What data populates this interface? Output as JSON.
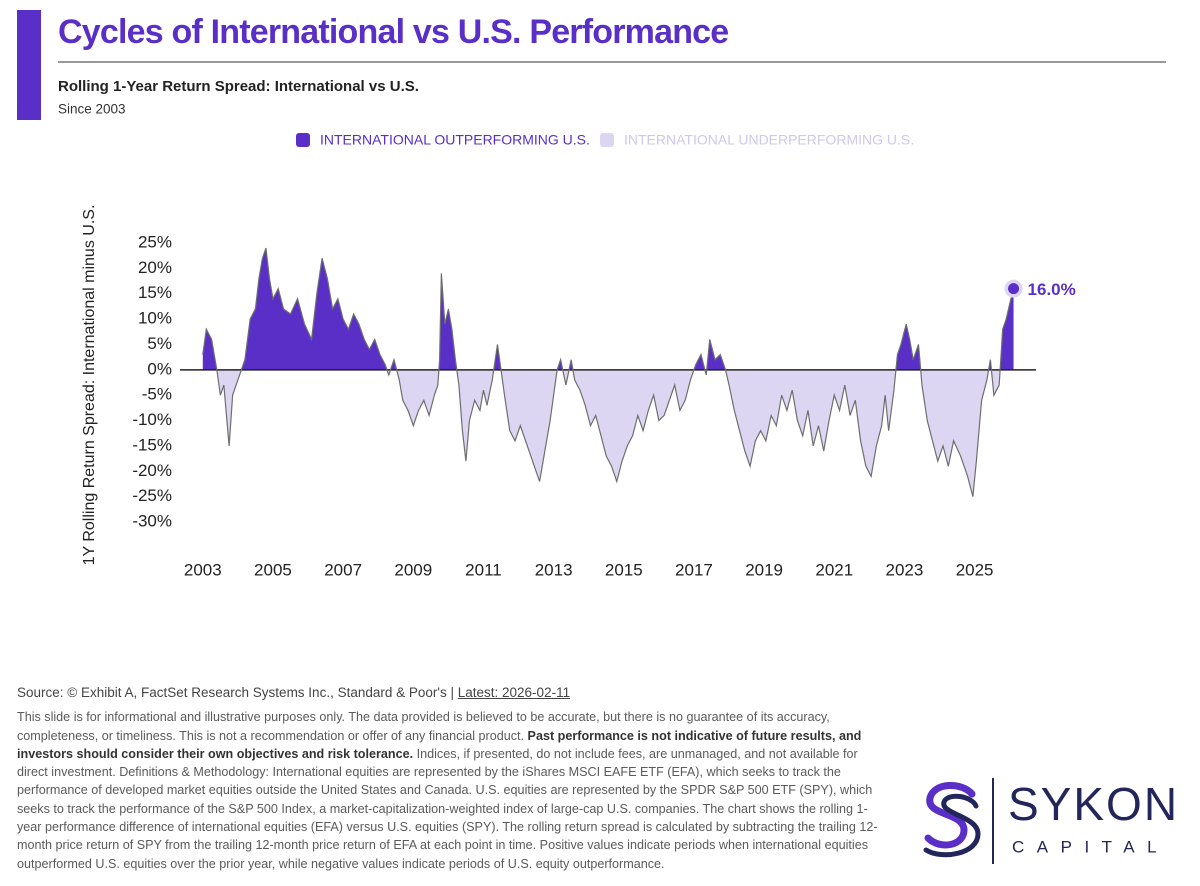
{
  "header": {
    "title": "Cycles of International vs U.S. Performance",
    "subtitle": "Rolling 1-Year Return Spread: International vs U.S.",
    "note": "Since 2003"
  },
  "chart_data": {
    "type": "area",
    "y_label": "1Y Rolling Return Spread: International minus U.S.",
    "legend": [
      {
        "label": "INTERNATIONAL OUTPERFORMING U.S.",
        "color": "#5a2fc8"
      },
      {
        "label": "INTERNATIONAL UNDERPERFORMING U.S.",
        "color": "#ddd6f3"
      }
    ],
    "line_color": "#6e6e6e",
    "x": [
      2003.0,
      2003.1,
      2003.25,
      2003.4,
      2003.5,
      2003.6,
      2003.75,
      2003.85,
      2004.0,
      2004.2,
      2004.35,
      2004.5,
      2004.6,
      2004.7,
      2004.8,
      2004.9,
      2005.0,
      2005.15,
      2005.3,
      2005.5,
      2005.7,
      2005.9,
      2006.1,
      2006.25,
      2006.4,
      2006.55,
      2006.7,
      2006.85,
      2007.0,
      2007.15,
      2007.3,
      2007.45,
      2007.6,
      2007.75,
      2007.9,
      2008.05,
      2008.2,
      2008.3,
      2008.45,
      2008.6,
      2008.7,
      2008.85,
      2009.0,
      2009.15,
      2009.3,
      2009.45,
      2009.6,
      2009.7,
      2009.75,
      2009.8,
      2009.9,
      2010.0,
      2010.1,
      2010.2,
      2010.3,
      2010.4,
      2010.5,
      2010.6,
      2010.75,
      2010.9,
      2011.0,
      2011.1,
      2011.25,
      2011.4,
      2011.5,
      2011.6,
      2011.75,
      2011.9,
      2012.05,
      2012.2,
      2012.35,
      2012.5,
      2012.6,
      2012.75,
      2012.9,
      2013.0,
      2013.1,
      2013.2,
      2013.35,
      2013.5,
      2013.6,
      2013.75,
      2013.9,
      2014.05,
      2014.2,
      2014.35,
      2014.5,
      2014.65,
      2014.8,
      2014.95,
      2015.1,
      2015.25,
      2015.4,
      2015.55,
      2015.7,
      2015.85,
      2016.0,
      2016.15,
      2016.3,
      2016.45,
      2016.6,
      2016.75,
      2016.9,
      2017.05,
      2017.2,
      2017.35,
      2017.45,
      2017.6,
      2017.75,
      2017.9,
      2018.0,
      2018.15,
      2018.3,
      2018.45,
      2018.6,
      2018.75,
      2018.9,
      2019.05,
      2019.2,
      2019.35,
      2019.5,
      2019.65,
      2019.8,
      2019.95,
      2020.1,
      2020.25,
      2020.4,
      2020.55,
      2020.7,
      2020.85,
      2021.0,
      2021.15,
      2021.3,
      2021.45,
      2021.6,
      2021.75,
      2021.9,
      2022.05,
      2022.2,
      2022.35,
      2022.45,
      2022.55,
      2022.7,
      2022.8,
      2022.9,
      2023.05,
      2023.15,
      2023.25,
      2023.4,
      2023.5,
      2023.65,
      2023.8,
      2023.95,
      2024.1,
      2024.25,
      2024.4,
      2024.6,
      2024.8,
      2024.95,
      2025.05,
      2025.2,
      2025.35,
      2025.45,
      2025.55,
      2025.7,
      2025.8,
      2025.9,
      2026.0,
      2026.11
    ],
    "values": [
      3,
      8,
      6,
      0,
      -5,
      -3,
      -15,
      -5,
      -2,
      2,
      10,
      12,
      18,
      22,
      24,
      18,
      14,
      16,
      12,
      11,
      14,
      9,
      6,
      15,
      22,
      18,
      12,
      14,
      10,
      8,
      11,
      9,
      6,
      4,
      6,
      3,
      1,
      -1,
      2,
      -2,
      -6,
      -8,
      -11,
      -8,
      -6,
      -9,
      -5,
      -3,
      2,
      19,
      9,
      12,
      8,
      2,
      -3,
      -12,
      -18,
      -10,
      -6,
      -8,
      -4,
      -7,
      -2,
      5,
      0,
      -5,
      -12,
      -14,
      -11,
      -14,
      -17,
      -20,
      -22,
      -16,
      -10,
      -5,
      0,
      2,
      -3,
      2,
      -2,
      -4,
      -7,
      -11,
      -9,
      -13,
      -17,
      -19,
      -22,
      -18,
      -15,
      -13,
      -9,
      -12,
      -8,
      -5,
      -10,
      -9,
      -6,
      -3,
      -8,
      -6,
      -2,
      1,
      3,
      -1,
      6,
      2,
      3,
      0,
      -3,
      -8,
      -12,
      -16,
      -19,
      -14,
      -12,
      -14,
      -9,
      -11,
      -5,
      -8,
      -4,
      -10,
      -13,
      -8,
      -15,
      -11,
      -16,
      -10,
      -5,
      -8,
      -3,
      -9,
      -6,
      -14,
      -19,
      -21,
      -15,
      -11,
      -5,
      -12,
      -4,
      3,
      5,
      9,
      6,
      2,
      5,
      -3,
      -10,
      -14,
      -18,
      -15,
      -19,
      -14,
      -17,
      -21,
      -25,
      -18,
      -6,
      -2,
      2,
      -5,
      -3,
      8,
      10,
      13,
      16.0
    ],
    "value_labels": [
      null,
      null,
      null,
      null,
      null,
      null,
      null,
      null,
      null,
      null,
      null,
      null,
      null,
      null,
      null,
      null,
      null,
      null,
      null,
      null,
      null,
      null,
      null,
      null,
      null,
      null,
      null,
      null,
      null,
      null,
      null,
      null,
      null,
      null,
      null,
      null,
      null,
      null,
      null,
      null,
      null,
      null,
      null,
      null,
      null,
      null,
      null,
      null,
      null,
      null,
      null,
      null,
      null,
      null,
      null,
      null,
      null,
      null,
      null,
      null,
      null,
      null,
      null,
      null,
      null,
      null,
      null,
      null,
      null,
      null,
      null,
      null,
      null,
      null,
      null,
      null,
      null,
      null,
      null,
      null,
      null,
      null,
      null,
      null,
      null,
      null,
      null,
      null,
      null,
      null,
      null,
      null,
      null,
      null,
      null,
      null,
      null,
      null,
      null,
      null,
      null,
      null,
      null,
      null,
      null,
      null,
      null,
      null,
      null,
      null,
      null,
      null,
      null,
      null,
      null,
      null,
      null,
      null,
      null,
      null,
      null,
      null,
      null,
      null,
      null,
      null,
      null,
      null,
      null,
      null,
      null,
      null,
      null,
      null,
      null,
      null,
      null,
      null,
      null,
      null,
      null,
      null,
      null,
      null,
      null,
      null,
      null,
      null,
      null,
      null,
      null,
      null,
      null,
      null,
      null,
      null,
      null,
      null,
      null,
      null,
      null,
      null,
      null,
      null,
      null,
      null,
      null,
      null,
      "16.0%"
    ],
    "xlim": [
      2002.35,
      2026.75
    ],
    "xticks": [
      2003,
      2005,
      2007,
      2009,
      2011,
      2013,
      2015,
      2017,
      2019,
      2021,
      2023,
      2025
    ],
    "ylim": [
      -30,
      25
    ],
    "yticks": [
      {
        "value": 25,
        "label": "25%"
      },
      {
        "value": 20,
        "label": "20%"
      },
      {
        "value": 15,
        "label": "15%"
      },
      {
        "value": 10,
        "label": "10%"
      },
      {
        "value": 5,
        "label": "5%"
      },
      {
        "value": 0,
        "label": "0%"
      },
      {
        "value": -5,
        "label": "-5%"
      },
      {
        "value": -10,
        "label": "-10%"
      },
      {
        "value": -15,
        "label": "-15%"
      },
      {
        "value": -20,
        "label": "-20%"
      },
      {
        "value": -25,
        "label": "-25%"
      },
      {
        "value": -30,
        "label": "-30%"
      }
    ],
    "grid": false
  },
  "footer": {
    "source": "Source: © Exhibit A, FactSet Research Systems Inc., Standard & Poor's |",
    "latest": "Latest: 2026-02-11",
    "disclaimer_start": "This slide is for informational and illustrative purposes only. The data provided is believed to be accurate, but there is no guarantee of its accuracy, completeness, or timeliness. This is not a recommendation or offer of any financial product.",
    "disclaimer_bold": "Past performance is not indicative of future results, and investors should consider their own objectives and risk tolerance.",
    "disclaimer_end": "Indices, if presented, do not include fees, are unmanaged, and not available for direct investment. Definitions & Methodology: International equities are represented by the iShares MSCI EAFE ETF (EFA), which seeks to track the performance of developed market equities outside the United States and Canada. U.S. equities are represented by the SPDR S&P 500 ETF (SPY), which seeks to track the performance of the S&P 500 Index, a market-capitalization-weighted index of large-cap U.S. companies. The chart shows the rolling 1-year performance difference of international equities (EFA) versus U.S. equities (SPY). The rolling return spread is calculated by subtracting the trailing 12-month price return of SPY from the trailing 12-month price return of EFA at each point in time. Positive values indicate periods when international equities outperformed U.S. equities over the prior year, while negative values indicate periods of U.S. equity outperformance."
  },
  "logo": {
    "name": "SYKON",
    "tagline": "CAPITAL"
  }
}
